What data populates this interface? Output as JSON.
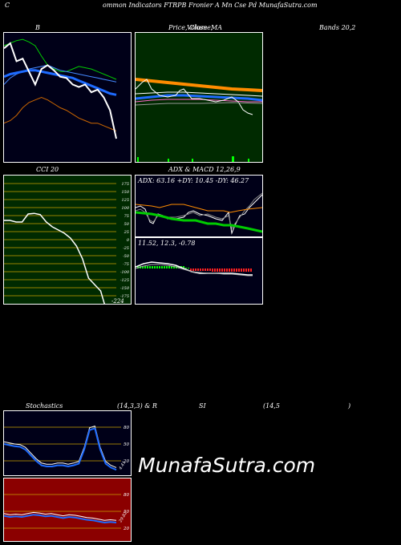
{
  "header": {
    "c": "C",
    "title": "ommon  Indicators FTRPB Fronier A Mn  Cse   Pd MunafaSutra.com"
  },
  "titles": {
    "b": "B",
    "price_a": "Price,",
    "price_b": "Volume,",
    "price_c": "Close",
    "price_ma": "MA",
    "bands": "Bands 20,2",
    "cci": "CCI 20",
    "adx_macd": "ADX  & MACD 12,26,9",
    "stoch": "Stochastics",
    "stoch_params": "(14,3,3) & R",
    "si": "SI",
    "rsi_params": "(14,5",
    "paren": ")"
  },
  "adx_line": "ADX: 63.16  +DY: 10.45 -DY: 46.27",
  "macd_line": "11.52,  12.3,  -0.78",
  "watermark": "MunafaSutra.com",
  "colors": {
    "green_panel": "#002a00",
    "navy_panel": "#000018",
    "red_panel": "#8b0000",
    "orange": "#ff8c00",
    "blue": "#1e6bff",
    "green_line": "#00cc00"
  },
  "chart_data": [
    {
      "type": "line",
      "name": "bollinger",
      "series": [
        {
          "values": [
            88,
            92,
            78,
            80,
            70,
            60,
            72,
            75,
            71,
            66,
            65,
            60,
            58,
            60,
            54,
            56,
            50,
            40,
            18
          ]
        },
        {
          "values": [
            60,
            65,
            68,
            70,
            72,
            73,
            74,
            75,
            73,
            71,
            70,
            69,
            68,
            67,
            66,
            65,
            64,
            63,
            62
          ]
        },
        {
          "values": [
            66,
            68,
            69,
            70,
            71,
            71,
            70,
            69,
            68,
            67,
            66,
            65,
            63,
            61,
            59,
            57,
            55,
            53,
            52
          ]
        },
        {
          "values": [
            90,
            92,
            94,
            95,
            93,
            90,
            82,
            75,
            72,
            70,
            70,
            72,
            74,
            73,
            72,
            70,
            68,
            66,
            64
          ]
        },
        {
          "values": [
            30,
            32,
            36,
            42,
            46,
            48,
            50,
            48,
            45,
            42,
            40,
            37,
            34,
            32,
            30,
            30,
            28,
            26,
            24
          ]
        }
      ]
    },
    {
      "type": "line",
      "name": "cci",
      "yticks": [
        "175",
        "150",
        "125",
        "100",
        "75",
        "50",
        "25",
        "0",
        "-25",
        "-50",
        "-75",
        "-100",
        "-125",
        "-150",
        "-175"
      ],
      "last_label": "-224",
      "values": [
        60,
        60,
        55,
        55,
        80,
        82,
        78,
        55,
        40,
        30,
        20,
        5,
        -20,
        -60,
        -120,
        -140,
        -160,
        -224
      ]
    },
    {
      "type": "line",
      "name": "stochastics",
      "yticks": [
        "80",
        "50",
        "20"
      ],
      "last_label": "4.41",
      "values": [
        50,
        48,
        46,
        45,
        40,
        30,
        20,
        12,
        10,
        10,
        12,
        12,
        10,
        12,
        15,
        40,
        75,
        78,
        40,
        15,
        8,
        4
      ]
    },
    {
      "type": "line",
      "name": "rsi",
      "yticks": [
        "80",
        "50",
        "20"
      ],
      "last_label": "29.82",
      "values": [
        42,
        40,
        41,
        40,
        42,
        44,
        43,
        41,
        42,
        40,
        38,
        40,
        39,
        37,
        35,
        34,
        32,
        30,
        31,
        30
      ]
    }
  ]
}
